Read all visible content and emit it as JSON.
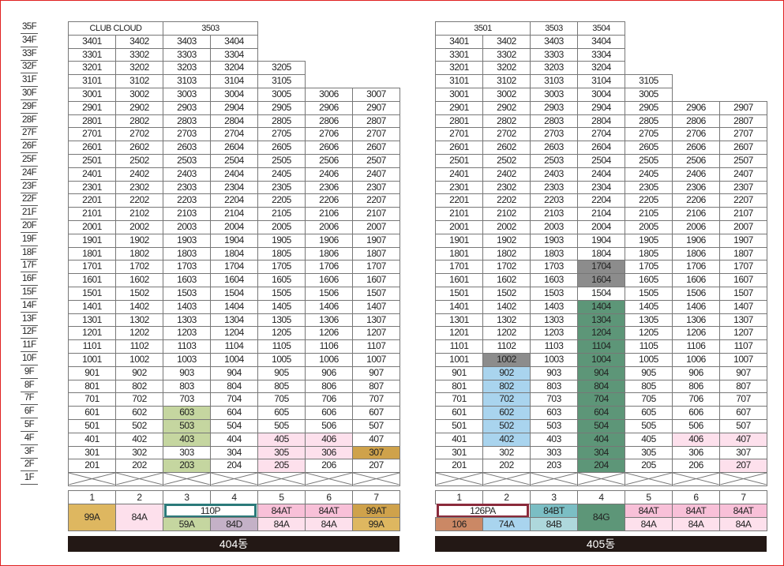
{
  "floors": [
    "35F",
    "34F",
    "33F",
    "32F",
    "31F",
    "30F",
    "29F",
    "28F",
    "27F",
    "26F",
    "25F",
    "24F",
    "23F",
    "22F",
    "21F",
    "20F",
    "19F",
    "18F",
    "17F",
    "16F",
    "15F",
    "14F",
    "13F",
    "12F",
    "11F",
    "10F",
    "9F",
    "8F",
    "7F",
    "6F",
    "5F",
    "4F",
    "3F",
    "2F",
    "1F"
  ],
  "colors": {
    "tan": "#deb760",
    "pink": "#f8c0d8",
    "lightpink": "#fde0ec",
    "green": "#c5d6a0",
    "mauve": "#c4b1c7",
    "gold": "#cfa24b",
    "gray": "#8c8c8c",
    "darkgreen": "#5d9678",
    "lightblue": "#a9d4ee",
    "brown": "#cb8865",
    "teal": "#7bbec4",
    "lightteal": "#aed8dc",
    "banner": "#231815",
    "teal_border": "#2b7a7a",
    "maroon_border": "#8b2b3c"
  },
  "buildings": [
    {
      "name": "404동",
      "lines": [
        "1",
        "2",
        "3",
        "4",
        "5",
        "6",
        "7"
      ],
      "top_labels": [
        {
          "text": "CLUB CLOUD",
          "floor": "35F",
          "col": 0,
          "span": 2
        },
        {
          "text": "3503",
          "floor": "35F",
          "col": 2,
          "span": 2
        }
      ],
      "stacks": [
        {
          "col": 0,
          "top": 34
        },
        {
          "col": 1,
          "top": 34
        },
        {
          "col": 2,
          "top": 34
        },
        {
          "col": 3,
          "top": 34
        },
        {
          "col": 4,
          "top": 32
        },
        {
          "col": 5,
          "top": 30
        },
        {
          "col": 6,
          "top": 30
        }
      ],
      "highlights": [
        {
          "unit": "603",
          "color": "green"
        },
        {
          "unit": "503",
          "color": "green"
        },
        {
          "unit": "403",
          "color": "green"
        },
        {
          "unit": "203",
          "color": "green"
        },
        {
          "unit": "405",
          "color": "lightpink"
        },
        {
          "unit": "305",
          "color": "lightpink"
        },
        {
          "unit": "205",
          "color": "lightpink"
        },
        {
          "unit": "406",
          "color": "lightpink"
        },
        {
          "unit": "306",
          "color": "lightpink"
        },
        {
          "unit": "307",
          "color": "gold"
        }
      ],
      "types": [
        {
          "col": 0,
          "span": 1,
          "full": true,
          "label": "99A",
          "bg": "tan"
        },
        {
          "col": 1,
          "span": 1,
          "full": true,
          "label": "84A",
          "bg": "lightpink"
        },
        {
          "col": 2,
          "span": 2,
          "row": "top",
          "label": "110P",
          "bg": "#ffffff",
          "border": "teal_border"
        },
        {
          "col": 2,
          "span": 1,
          "row": "bottom",
          "label": "59A",
          "bg": "green"
        },
        {
          "col": 3,
          "span": 1,
          "row": "bottom",
          "label": "84D",
          "bg": "mauve"
        },
        {
          "col": 4,
          "span": 1,
          "row": "top",
          "label": "84AT",
          "bg": "pink"
        },
        {
          "col": 4,
          "span": 1,
          "row": "bottom",
          "label": "84A",
          "bg": "lightpink"
        },
        {
          "col": 5,
          "span": 1,
          "row": "top",
          "label": "84AT",
          "bg": "pink"
        },
        {
          "col": 5,
          "span": 1,
          "row": "bottom",
          "label": "84A",
          "bg": "lightpink"
        },
        {
          "col": 6,
          "span": 1,
          "row": "top",
          "label": "99AT",
          "bg": "gold"
        },
        {
          "col": 6,
          "span": 1,
          "row": "bottom",
          "label": "99A",
          "bg": "tan"
        }
      ]
    },
    {
      "name": "405동",
      "lines": [
        "1",
        "2",
        "3",
        "4",
        "5",
        "6",
        "7"
      ],
      "top_labels": [
        {
          "text": "3501",
          "floor": "35F",
          "col": 0,
          "span": 2
        },
        {
          "text": "3503",
          "floor": "35F",
          "col": 2,
          "span": 1
        },
        {
          "text": "3504",
          "floor": "35F",
          "col": 3,
          "span": 1
        }
      ],
      "stacks": [
        {
          "col": 0,
          "top": 34
        },
        {
          "col": 1,
          "top": 34
        },
        {
          "col": 2,
          "top": 34
        },
        {
          "col": 3,
          "top": 34
        },
        {
          "col": 4,
          "top": 31
        },
        {
          "col": 5,
          "top": 29
        },
        {
          "col": 6,
          "top": 29
        }
      ],
      "highlights": [
        {
          "unit": "1704",
          "color": "gray"
        },
        {
          "unit": "1604",
          "color": "gray"
        },
        {
          "unit": "1002",
          "color": "gray"
        },
        {
          "unit": "1404",
          "color": "darkgreen"
        },
        {
          "unit": "1304",
          "color": "darkgreen"
        },
        {
          "unit": "1204",
          "color": "darkgreen"
        },
        {
          "unit": "1104",
          "color": "darkgreen"
        },
        {
          "unit": "1004",
          "color": "darkgreen"
        },
        {
          "unit": "904",
          "color": "darkgreen"
        },
        {
          "unit": "804",
          "color": "darkgreen"
        },
        {
          "unit": "704",
          "color": "darkgreen"
        },
        {
          "unit": "604",
          "color": "darkgreen"
        },
        {
          "unit": "504",
          "color": "darkgreen"
        },
        {
          "unit": "404",
          "color": "darkgreen"
        },
        {
          "unit": "304",
          "color": "darkgreen"
        },
        {
          "unit": "204",
          "color": "darkgreen"
        },
        {
          "unit": "902",
          "color": "lightblue"
        },
        {
          "unit": "802",
          "color": "lightblue"
        },
        {
          "unit": "702",
          "color": "lightblue"
        },
        {
          "unit": "602",
          "color": "lightblue"
        },
        {
          "unit": "502",
          "color": "lightblue"
        },
        {
          "unit": "402",
          "color": "lightblue"
        },
        {
          "unit": "406",
          "color": "lightpink"
        },
        {
          "unit": "407",
          "color": "lightpink"
        },
        {
          "unit": "207",
          "color": "lightpink"
        }
      ],
      "types": [
        {
          "col": 0,
          "span": 2,
          "row": "top",
          "label": "126PA",
          "bg": "#ffffff",
          "border": "maroon_border"
        },
        {
          "col": 0,
          "span": 1,
          "row": "bottom",
          "label": "106",
          "bg": "brown"
        },
        {
          "col": 1,
          "span": 1,
          "row": "bottom",
          "label": "74A",
          "bg": "lightblue"
        },
        {
          "col": 2,
          "span": 1,
          "row": "top",
          "label": "84BT",
          "bg": "teal"
        },
        {
          "col": 2,
          "span": 1,
          "row": "bottom",
          "label": "84B",
          "bg": "lightteal"
        },
        {
          "col": 3,
          "span": 1,
          "full": true,
          "label": "84G",
          "bg": "darkgreen"
        },
        {
          "col": 4,
          "span": 1,
          "row": "top",
          "label": "84AT",
          "bg": "pink"
        },
        {
          "col": 4,
          "span": 1,
          "row": "bottom",
          "label": "84A",
          "bg": "lightpink"
        },
        {
          "col": 5,
          "span": 1,
          "row": "top",
          "label": "84AT",
          "bg": "pink"
        },
        {
          "col": 5,
          "span": 1,
          "row": "bottom",
          "label": "84A",
          "bg": "lightpink"
        },
        {
          "col": 6,
          "span": 1,
          "row": "top",
          "label": "84AT",
          "bg": "pink"
        },
        {
          "col": 6,
          "span": 1,
          "row": "bottom",
          "label": "84A",
          "bg": "lightpink"
        }
      ]
    }
  ]
}
